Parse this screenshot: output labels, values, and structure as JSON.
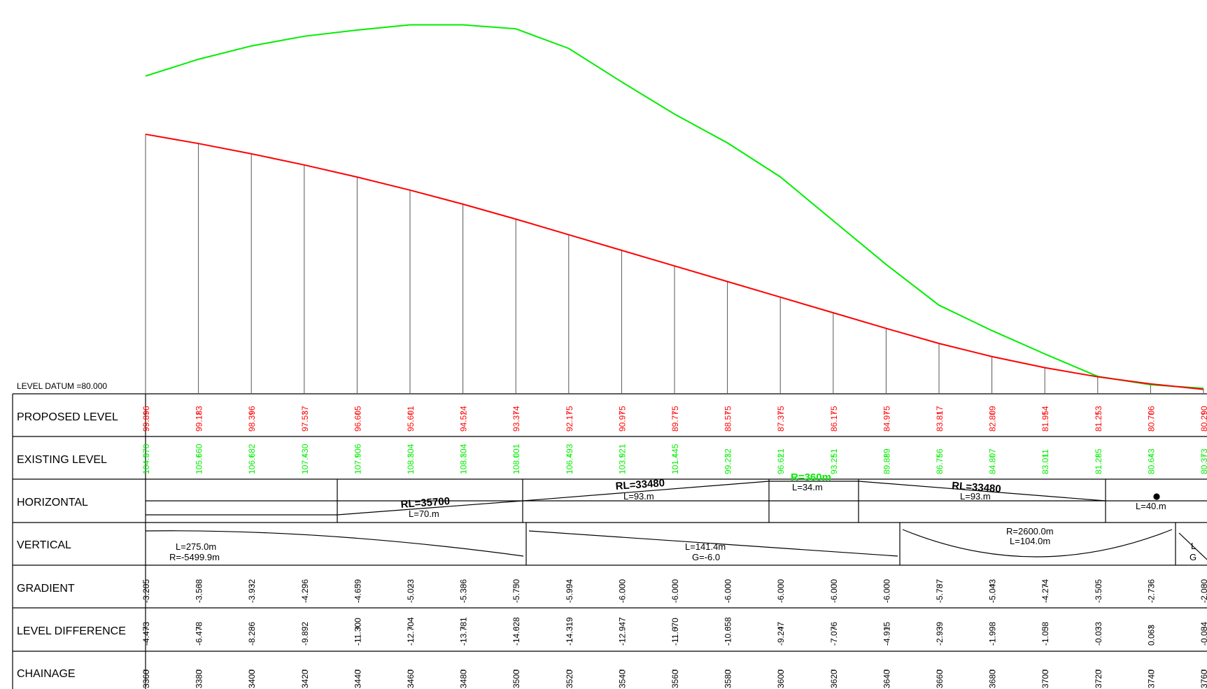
{
  "level_datum": "LEVEL DATUM =80.000",
  "colors": {
    "proposed": "#ff0000",
    "existing": "#00ee00",
    "lines": "#000000",
    "grid": "#555555"
  },
  "rows": {
    "proposed": "PROPOSED LEVEL",
    "existing": "EXISTING LEVEL",
    "horizontal": "HORIZONTAL",
    "vertical": "VERTICAL",
    "gradient": "GRADIENT",
    "level_difference": "LEVEL DIFFERENCE",
    "chainage": "CHAINAGE"
  },
  "chart_data": {
    "type": "line",
    "x": [
      3360,
      3380,
      3400,
      3420,
      3440,
      3460,
      3480,
      3500,
      3520,
      3540,
      3560,
      3580,
      3600,
      3620,
      3640,
      3660,
      3680,
      3700,
      3720,
      3740,
      3760
    ],
    "series": [
      {
        "values": [
          99.896,
          99.183,
          98.396,
          97.537,
          96.605,
          95.601,
          94.524,
          93.374,
          92.175,
          90.975,
          89.775,
          88.575,
          87.375,
          86.175,
          84.975,
          83.817,
          82.809,
          81.954,
          81.253,
          80.706,
          80.29
        ]
      },
      {
        "values": [
          104.37,
          105.66,
          106.682,
          107.43,
          107.906,
          108.304,
          108.304,
          108.001,
          106.493,
          103.921,
          101.445,
          99.232,
          96.621,
          93.251,
          89.889,
          86.756,
          84.807,
          83.011,
          81.285,
          80.643,
          80.373
        ]
      }
    ]
  },
  "table": {
    "proposed_level": [
      "99.896",
      "99.183",
      "98.396",
      "97.537",
      "96.605",
      "95.601",
      "94.524",
      "93.374",
      "92.175",
      "90.975",
      "89.775",
      "88.575",
      "87.375",
      "86.175",
      "84.975",
      "83.817",
      "82.809",
      "81.954",
      "81.253",
      "80.706",
      "80.290"
    ],
    "existing_level": [
      "104.370",
      "105.660",
      "106.682",
      "107.430",
      "107.906",
      "108.304",
      "108.304",
      "108.001",
      "106.493",
      "103.921",
      "101.445",
      "99.232",
      "96.621",
      "93.251",
      "89.889",
      "86.756",
      "84.807",
      "83.011",
      "81.285",
      "80.643",
      "80.373"
    ],
    "gradient": [
      "-3.205",
      "-3.568",
      "-3.932",
      "-4.296",
      "-4.659",
      "-5.023",
      "-5.386",
      "-5.750",
      "-5.994",
      "-6.000",
      "-6.000",
      "-6.000",
      "-6.000",
      "-6.000",
      "-6.000",
      "-5.787",
      "-5.043",
      "-4.274",
      "-3.505",
      "-2.736",
      "-2.080"
    ],
    "level_difference": [
      "-4.473",
      "-6.478",
      "-8.286",
      "-9.892",
      "-11.300",
      "-12.704",
      "-13.781",
      "-14.628",
      "-14.319",
      "-12.947",
      "-11.670",
      "-10.658",
      "-9.247",
      "-7.076",
      "-4.915",
      "-2.939",
      "-1.998",
      "-1.058",
      "-0.033",
      "0.063",
      "-0.084"
    ],
    "chainage": [
      "3360",
      "3380",
      "3400",
      "3420",
      "3440",
      "3460",
      "3480",
      "3500",
      "3520",
      "3540",
      "3560",
      "3580",
      "3600",
      "3620",
      "3640",
      "3660",
      "3680",
      "3700",
      "3720",
      "3740",
      "3760"
    ]
  },
  "horizontal_annotations": {
    "rl_35700": "RL=35700",
    "l_70": "L=70.m",
    "rl_33480_a": "RL=33480",
    "l_93_a": "L=93.m",
    "r_360": "R=360m",
    "l_34": "L=34.m",
    "rl_33480_b": "RL=33480",
    "l_93_b": "L=93.m",
    "l_40": "L=40.m"
  },
  "vertical_annotations": {
    "l_275": "L=275.0m",
    "r_5499": "R=-5499.9m",
    "l_141": "L=141.4m",
    "g_6": "G=-6.0",
    "r_2600": "R=2600.0m",
    "l_104": "L=104.0m",
    "l_cut": "L",
    "g_cut": "G"
  }
}
